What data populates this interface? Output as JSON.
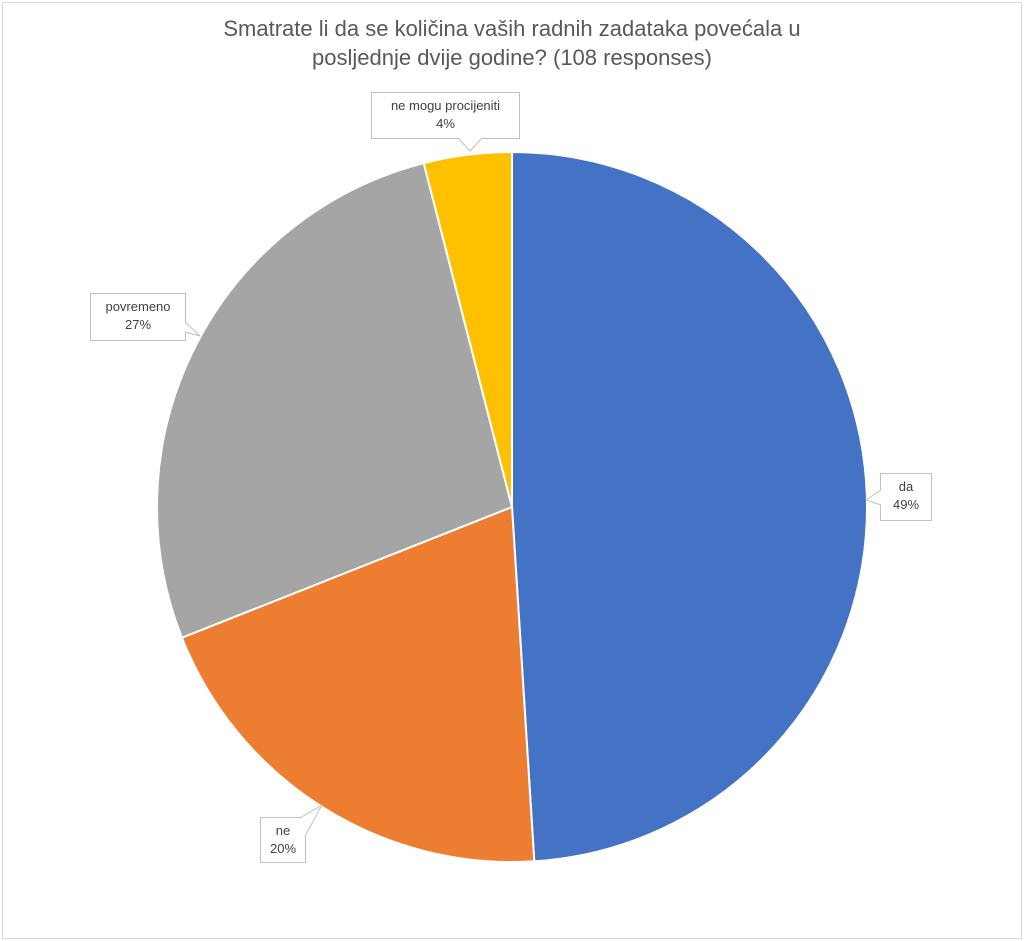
{
  "chart_data": {
    "type": "pie",
    "title": "Smatrate li da se količina vaših radnih zadataka povećala u posljednje dvije godine? (108 responses)",
    "title_lines": [
      "Smatrate li da se količina vaših radnih zadataka povećala u",
      "posljednje dvije godine? (108 responses)"
    ],
    "slices": [
      {
        "label": "da",
        "value": 49,
        "display": "49%",
        "color": "#4472C4"
      },
      {
        "label": "ne",
        "value": 20,
        "display": "20%",
        "color": "#ED7D31"
      },
      {
        "label": "povremeno",
        "value": 27,
        "display": "27%",
        "color": "#A5A5A5"
      },
      {
        "label": "ne mogu procijeniti",
        "value": 4,
        "display": "4%",
        "color": "#FFC000"
      }
    ],
    "start_angle": "top",
    "direction": "clockwise",
    "legend": "none"
  }
}
